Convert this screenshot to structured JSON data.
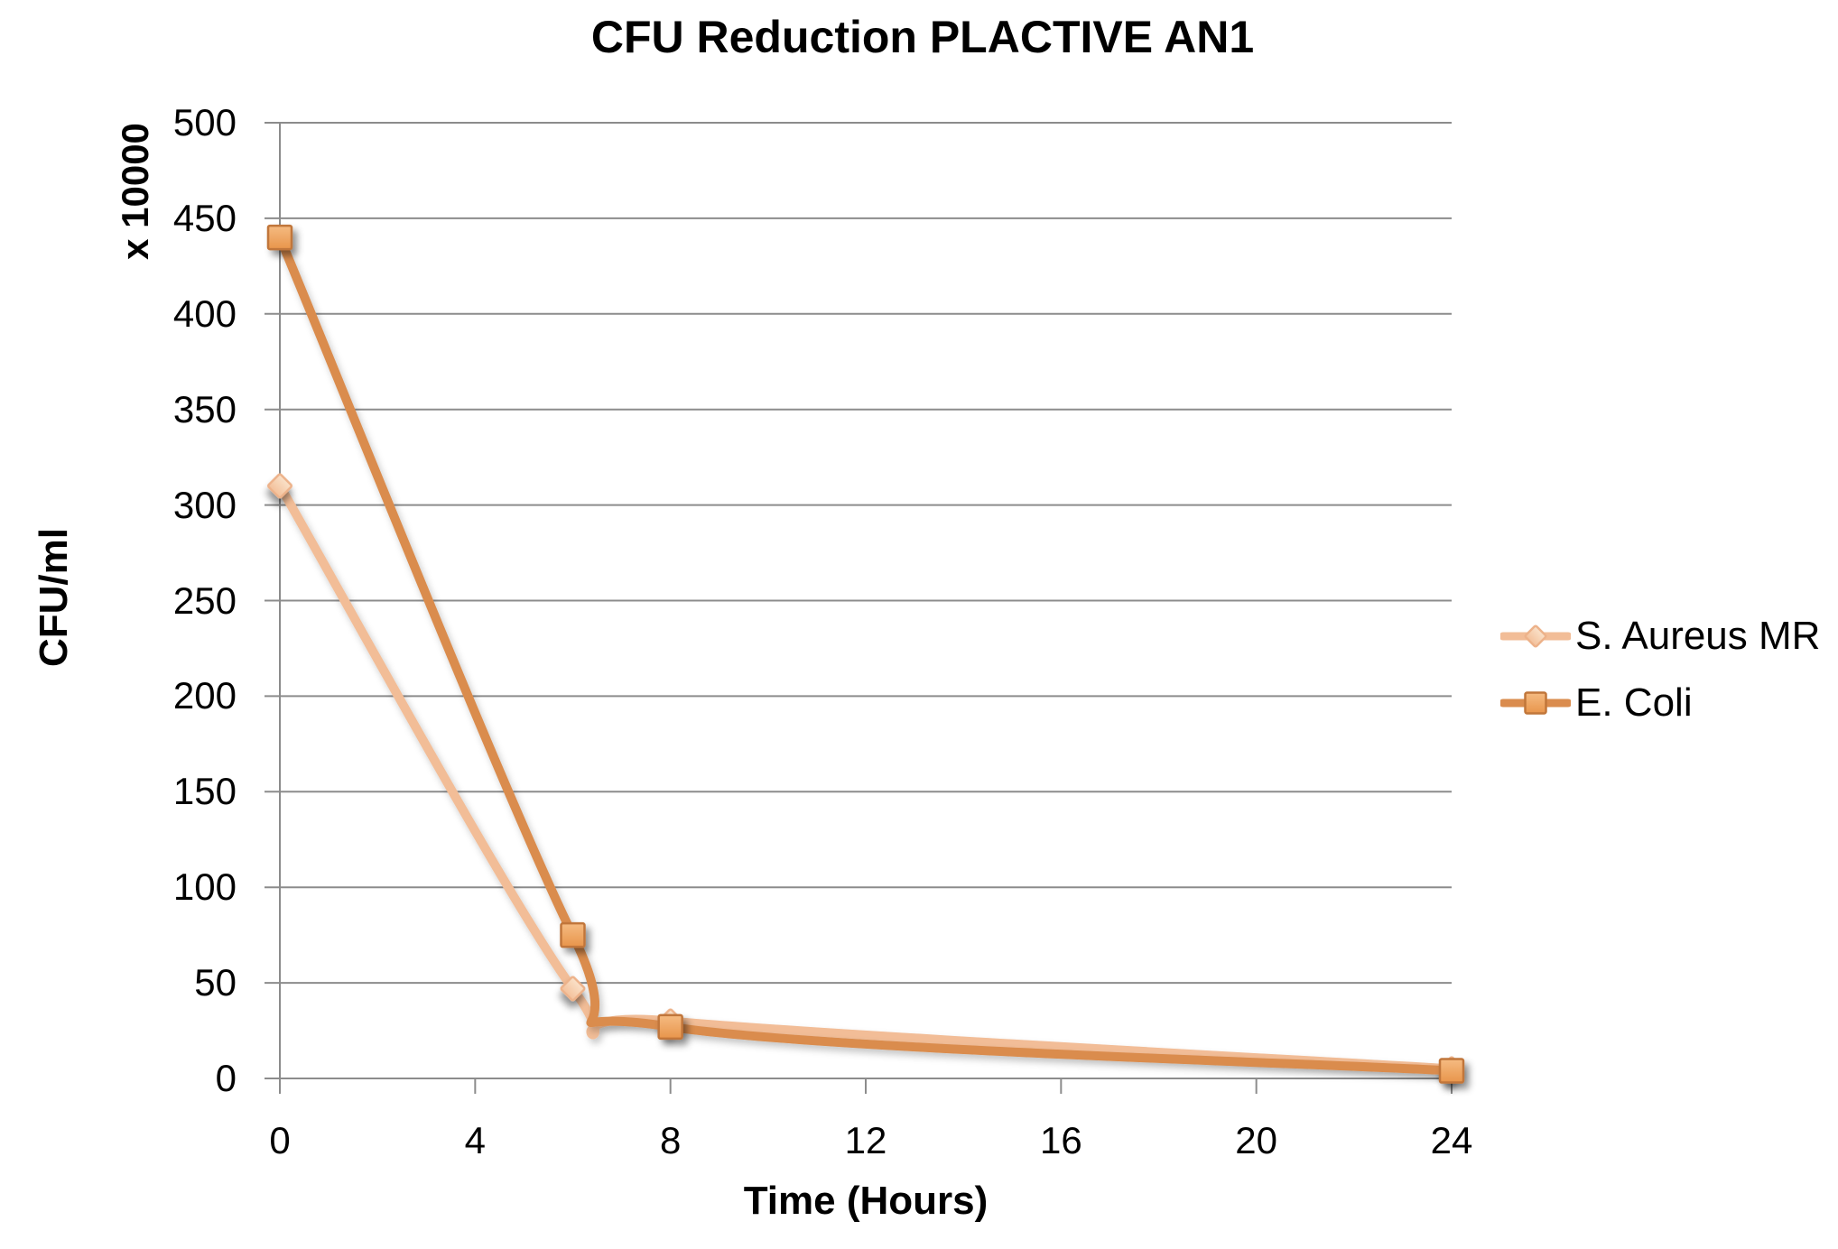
{
  "chart_data": {
    "type": "line",
    "title": "CFU Reduction PLACTIVE AN1",
    "xlabel": "Time (Hours)",
    "ylabel": "CFU/ml",
    "ylabel_multiplier": "x 10000",
    "x": [
      0,
      6,
      8,
      24
    ],
    "series": [
      {
        "name": "S. Aureus MR",
        "values": [
          310,
          47,
          30,
          5
        ],
        "marker": "diamond",
        "line_color": "#F2BD97",
        "marker_fill_top": "#FAE2CA",
        "marker_fill_bottom": "#F3C09A",
        "marker_stroke": "#EDB28A"
      },
      {
        "name": "E. Coli",
        "values": [
          440,
          75,
          27,
          4
        ],
        "marker": "square",
        "line_color": "#DA8C4E",
        "marker_fill_top": "#F5BB82",
        "marker_fill_bottom": "#E8954B",
        "marker_stroke": "#C1763A"
      }
    ],
    "x_ticks": [
      0,
      4,
      8,
      12,
      16,
      20,
      24
    ],
    "y_ticks": [
      0,
      50,
      100,
      150,
      200,
      250,
      300,
      350,
      400,
      450,
      500
    ],
    "xlim": [
      0,
      24
    ],
    "ylim": [
      0,
      500
    ],
    "grid": "horizontal",
    "grid_color": "#8C8C8C",
    "axis_color": "#8C8C8C",
    "text_color": "#000000",
    "background": "#FFFFFF",
    "legend_position": "right"
  }
}
